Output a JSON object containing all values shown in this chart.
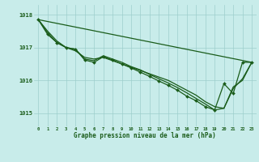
{
  "background_color": "#c8ecea",
  "plot_bg_color": "#c8ecea",
  "grid_color": "#9dcfcc",
  "line_color": "#1a5c1a",
  "marker_color": "#1a5c1a",
  "xlabel": "Graphe pression niveau de la mer (hPa)",
  "xlim": [
    -0.5,
    23.5
  ],
  "ylim": [
    1014.6,
    1018.3
  ],
  "yticks": [
    1015,
    1016,
    1017,
    1018
  ],
  "xticks": [
    0,
    1,
    2,
    3,
    4,
    5,
    6,
    7,
    8,
    9,
    10,
    11,
    12,
    13,
    14,
    15,
    16,
    17,
    18,
    19,
    20,
    21,
    22,
    23
  ],
  "series": [
    {
      "x": [
        0,
        23
      ],
      "y": [
        1017.85,
        1016.55
      ],
      "with_markers": false,
      "lw": 0.9
    },
    {
      "x": [
        0,
        1,
        2,
        3,
        4,
        5,
        6,
        7,
        8,
        9,
        10,
        11,
        12,
        13,
        14,
        15,
        16,
        17,
        18,
        19,
        20,
        21,
        22,
        23
      ],
      "y": [
        1017.85,
        1017.5,
        1017.2,
        1017.0,
        1016.9,
        1016.7,
        1016.65,
        1016.7,
        1016.6,
        1016.5,
        1016.4,
        1016.3,
        1016.2,
        1016.1,
        1016.0,
        1015.85,
        1015.7,
        1015.55,
        1015.35,
        1015.2,
        1015.15,
        1015.8,
        1016.0,
        1016.55
      ],
      "with_markers": false,
      "lw": 0.9
    },
    {
      "x": [
        0,
        1,
        2,
        3,
        4,
        5,
        6,
        7,
        8,
        9,
        10,
        11,
        12,
        13,
        14,
        15,
        16,
        17,
        18,
        19,
        20,
        21,
        22,
        23
      ],
      "y": [
        1017.85,
        1017.45,
        1017.15,
        1017.0,
        1016.95,
        1016.65,
        1016.6,
        1016.75,
        1016.65,
        1016.55,
        1016.42,
        1016.32,
        1016.18,
        1016.05,
        1015.92,
        1015.78,
        1015.62,
        1015.45,
        1015.28,
        1015.1,
        1015.15,
        1015.75,
        1016.05,
        1016.55
      ],
      "with_markers": false,
      "lw": 0.9
    },
    {
      "x": [
        0,
        1,
        2,
        3,
        4,
        5,
        6,
        7,
        8,
        9,
        10,
        11,
        12,
        13,
        14,
        15,
        16,
        17,
        18,
        19,
        20,
        21,
        22,
        23
      ],
      "y": [
        1017.85,
        1017.4,
        1017.15,
        1017.0,
        1016.95,
        1016.62,
        1016.55,
        1016.72,
        1016.62,
        1016.5,
        1016.38,
        1016.25,
        1016.12,
        1015.98,
        1015.85,
        1015.7,
        1015.52,
        1015.38,
        1015.2,
        1015.1,
        1015.9,
        1015.6,
        1016.55,
        1016.55
      ],
      "with_markers": true,
      "lw": 0.9
    }
  ]
}
